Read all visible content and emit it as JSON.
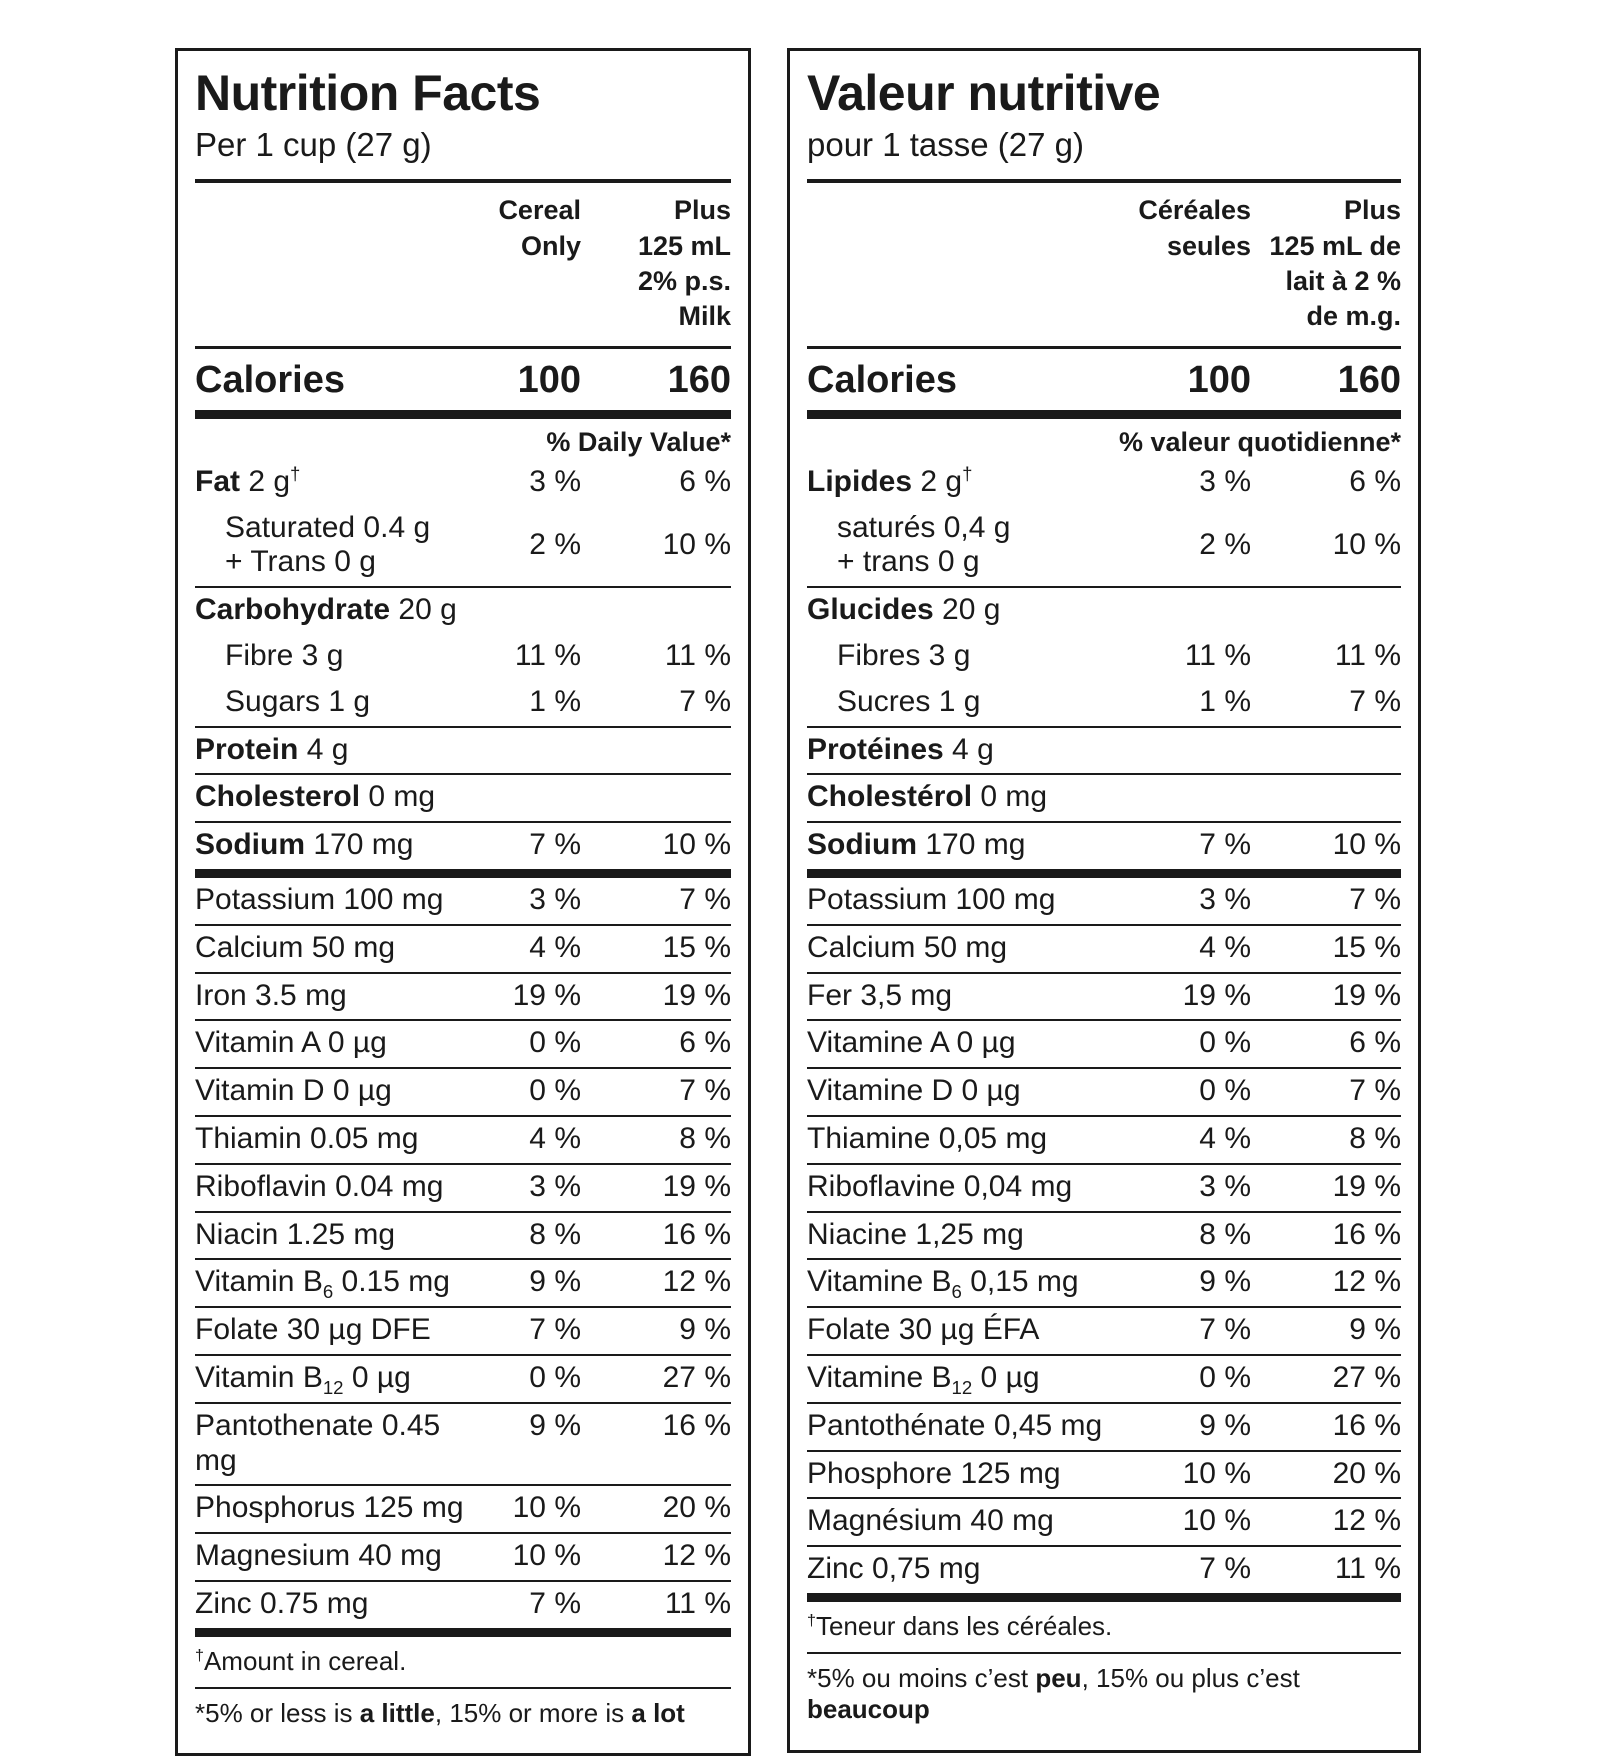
{
  "page_background": "#ffffff",
  "text_color": "#1a1a1a",
  "panels": {
    "en": {
      "title": "Nutrition Facts",
      "serving": "Per 1 cup (27 g)",
      "column_headers": {
        "col1_lines": [
          "Cereal",
          "Only"
        ],
        "col2_lines": [
          "Plus",
          "125 mL",
          "2% p.s.",
          "Milk"
        ]
      },
      "calories": {
        "label": "Calories",
        "cereal_only": "100",
        "with_milk": "160"
      },
      "daily_value_label": "% Daily Value*",
      "macro_blocks": [
        {
          "rows": [
            {
              "lines": [
                [
                  {
                    "t": "Fat",
                    "b": true
                  },
                  {
                    "t": " 2 g"
                  },
                  {
                    "t": "†",
                    "sup": true
                  }
                ]
              ],
              "indent": false,
              "v1": "3 %",
              "v2": "6 %"
            },
            {
              "lines": [
                [
                  {
                    "t": "Saturated 0.4 g"
                  }
                ],
                [
                  {
                    "t": "+ Trans 0 g"
                  }
                ]
              ],
              "indent": true,
              "v1": "2 %",
              "v2": "10 %"
            }
          ]
        },
        {
          "rows": [
            {
              "lines": [
                [
                  {
                    "t": "Carbohydrate",
                    "b": true
                  },
                  {
                    "t": " 20 g"
                  }
                ]
              ],
              "indent": false,
              "v1": "",
              "v2": ""
            },
            {
              "lines": [
                [
                  {
                    "t": "Fibre 3 g"
                  }
                ]
              ],
              "indent": true,
              "v1": "11 %",
              "v2": "11 %"
            },
            {
              "lines": [
                [
                  {
                    "t": "Sugars 1 g"
                  }
                ]
              ],
              "indent": true,
              "v1": "1 %",
              "v2": "7 %"
            }
          ]
        },
        {
          "rows": [
            {
              "lines": [
                [
                  {
                    "t": "Protein",
                    "b": true
                  },
                  {
                    "t": " 4 g"
                  }
                ]
              ],
              "indent": false,
              "v1": "",
              "v2": ""
            }
          ]
        },
        {
          "rows": [
            {
              "lines": [
                [
                  {
                    "t": "Cholesterol",
                    "b": true
                  },
                  {
                    "t": " 0 mg"
                  }
                ]
              ],
              "indent": false,
              "v1": "",
              "v2": ""
            }
          ]
        },
        {
          "rows": [
            {
              "lines": [
                [
                  {
                    "t": "Sodium",
                    "b": true
                  },
                  {
                    "t": " 170 mg"
                  }
                ]
              ],
              "indent": false,
              "v1": "7 %",
              "v2": "10 %"
            }
          ]
        }
      ],
      "micro_rows": [
        {
          "lines": [
            [
              {
                "t": "Potassium 100 mg"
              }
            ]
          ],
          "v1": "3 %",
          "v2": "7 %"
        },
        {
          "lines": [
            [
              {
                "t": "Calcium 50 mg"
              }
            ]
          ],
          "v1": "4 %",
          "v2": "15 %"
        },
        {
          "lines": [
            [
              {
                "t": "Iron 3.5 mg"
              }
            ]
          ],
          "v1": "19 %",
          "v2": "19 %"
        },
        {
          "lines": [
            [
              {
                "t": "Vitamin A 0 µg"
              }
            ]
          ],
          "v1": "0 %",
          "v2": "6 %"
        },
        {
          "lines": [
            [
              {
                "t": "Vitamin D 0 µg"
              }
            ]
          ],
          "v1": "0 %",
          "v2": "7 %"
        },
        {
          "lines": [
            [
              {
                "t": "Thiamin 0.05 mg"
              }
            ]
          ],
          "v1": "4 %",
          "v2": "8 %"
        },
        {
          "lines": [
            [
              {
                "t": "Riboflavin 0.04 mg"
              }
            ]
          ],
          "v1": "3 %",
          "v2": "19 %"
        },
        {
          "lines": [
            [
              {
                "t": "Niacin 1.25 mg"
              }
            ]
          ],
          "v1": "8 %",
          "v2": "16 %"
        },
        {
          "lines": [
            [
              {
                "t": "Vitamin B"
              },
              {
                "t": "6",
                "sub": true
              },
              {
                "t": " 0.15 mg"
              }
            ]
          ],
          "v1": "9 %",
          "v2": "12 %"
        },
        {
          "lines": [
            [
              {
                "t": "Folate 30 µg DFE"
              }
            ]
          ],
          "v1": "7 %",
          "v2": "9 %"
        },
        {
          "lines": [
            [
              {
                "t": "Vitamin B"
              },
              {
                "t": "12",
                "sub": true
              },
              {
                "t": " 0 µg"
              }
            ]
          ],
          "v1": "0 %",
          "v2": "27 %"
        },
        {
          "lines": [
            [
              {
                "t": "Pantothenate 0.45 mg"
              }
            ]
          ],
          "v1": "9 %",
          "v2": "16 %"
        },
        {
          "lines": [
            [
              {
                "t": "Phosphorus 125 mg"
              }
            ]
          ],
          "v1": "10 %",
          "v2": "20 %"
        },
        {
          "lines": [
            [
              {
                "t": "Magnesium 40 mg"
              }
            ]
          ],
          "v1": "10 %",
          "v2": "12 %"
        },
        {
          "lines": [
            [
              {
                "t": "Zinc 0.75 mg"
              }
            ]
          ],
          "v1": "7 %",
          "v2": "11 %"
        }
      ],
      "footnote_dagger": [
        {
          "t": "†",
          "sup": true
        },
        {
          "t": "Amount in cereal."
        }
      ],
      "footnote_star": [
        {
          "t": "*"
        },
        {
          "t": "5% or less is "
        },
        {
          "t": "a little",
          "b": true
        },
        {
          "t": ", 15% or more is "
        },
        {
          "t": "a lot",
          "b": true
        }
      ]
    },
    "fr": {
      "title": "Valeur nutritive",
      "serving": "pour 1 tasse (27 g)",
      "column_headers": {
        "col1_lines": [
          "Céréales",
          "seules"
        ],
        "col2_lines": [
          "Plus",
          "125 mL de",
          "lait à 2 %",
          "de m.g."
        ]
      },
      "calories": {
        "label": "Calories",
        "cereal_only": "100",
        "with_milk": "160"
      },
      "daily_value_label": "% valeur quotidienne*",
      "macro_blocks": [
        {
          "rows": [
            {
              "lines": [
                [
                  {
                    "t": "Lipides",
                    "b": true
                  },
                  {
                    "t": " 2 g"
                  },
                  {
                    "t": "†",
                    "sup": true
                  }
                ]
              ],
              "indent": false,
              "v1": "3 %",
              "v2": "6 %"
            },
            {
              "lines": [
                [
                  {
                    "t": "saturés 0,4 g"
                  }
                ],
                [
                  {
                    "t": "+ trans 0 g"
                  }
                ]
              ],
              "indent": true,
              "v1": "2 %",
              "v2": "10 %"
            }
          ]
        },
        {
          "rows": [
            {
              "lines": [
                [
                  {
                    "t": "Glucides",
                    "b": true
                  },
                  {
                    "t": " 20 g"
                  }
                ]
              ],
              "indent": false,
              "v1": "",
              "v2": ""
            },
            {
              "lines": [
                [
                  {
                    "t": "Fibres 3 g"
                  }
                ]
              ],
              "indent": true,
              "v1": "11 %",
              "v2": "11 %"
            },
            {
              "lines": [
                [
                  {
                    "t": "Sucres 1 g"
                  }
                ]
              ],
              "indent": true,
              "v1": "1 %",
              "v2": "7 %"
            }
          ]
        },
        {
          "rows": [
            {
              "lines": [
                [
                  {
                    "t": "Protéines",
                    "b": true
                  },
                  {
                    "t": " 4 g"
                  }
                ]
              ],
              "indent": false,
              "v1": "",
              "v2": ""
            }
          ]
        },
        {
          "rows": [
            {
              "lines": [
                [
                  {
                    "t": "Cholestérol",
                    "b": true
                  },
                  {
                    "t": " 0 mg"
                  }
                ]
              ],
              "indent": false,
              "v1": "",
              "v2": ""
            }
          ]
        },
        {
          "rows": [
            {
              "lines": [
                [
                  {
                    "t": "Sodium",
                    "b": true
                  },
                  {
                    "t": " 170 mg"
                  }
                ]
              ],
              "indent": false,
              "v1": "7 %",
              "v2": "10 %"
            }
          ]
        }
      ],
      "micro_rows": [
        {
          "lines": [
            [
              {
                "t": "Potassium 100 mg"
              }
            ]
          ],
          "v1": "3 %",
          "v2": "7 %"
        },
        {
          "lines": [
            [
              {
                "t": "Calcium 50 mg"
              }
            ]
          ],
          "v1": "4 %",
          "v2": "15 %"
        },
        {
          "lines": [
            [
              {
                "t": "Fer 3,5 mg"
              }
            ]
          ],
          "v1": "19 %",
          "v2": "19 %"
        },
        {
          "lines": [
            [
              {
                "t": "Vitamine A 0 µg"
              }
            ]
          ],
          "v1": "0 %",
          "v2": "6 %"
        },
        {
          "lines": [
            [
              {
                "t": "Vitamine D 0 µg"
              }
            ]
          ],
          "v1": "0 %",
          "v2": "7 %"
        },
        {
          "lines": [
            [
              {
                "t": "Thiamine 0,05 mg"
              }
            ]
          ],
          "v1": "4 %",
          "v2": "8 %"
        },
        {
          "lines": [
            [
              {
                "t": "Riboflavine 0,04 mg"
              }
            ]
          ],
          "v1": "3 %",
          "v2": "19 %"
        },
        {
          "lines": [
            [
              {
                "t": "Niacine 1,25 mg"
              }
            ]
          ],
          "v1": "8 %",
          "v2": "16 %"
        },
        {
          "lines": [
            [
              {
                "t": "Vitamine B"
              },
              {
                "t": "6",
                "sub": true
              },
              {
                "t": " 0,15 mg"
              }
            ]
          ],
          "v1": "9 %",
          "v2": "12 %"
        },
        {
          "lines": [
            [
              {
                "t": "Folate 30 µg ÉFA"
              }
            ]
          ],
          "v1": "7 %",
          "v2": "9 %"
        },
        {
          "lines": [
            [
              {
                "t": "Vitamine B"
              },
              {
                "t": "12",
                "sub": true
              },
              {
                "t": " 0 µg"
              }
            ]
          ],
          "v1": "0 %",
          "v2": "27 %"
        },
        {
          "lines": [
            [
              {
                "t": "Pantothénate 0,45 mg"
              }
            ]
          ],
          "v1": "9 %",
          "v2": "16 %"
        },
        {
          "lines": [
            [
              {
                "t": "Phosphore 125 mg"
              }
            ]
          ],
          "v1": "10 %",
          "v2": "20 %"
        },
        {
          "lines": [
            [
              {
                "t": "Magnésium 40 mg"
              }
            ]
          ],
          "v1": "10 %",
          "v2": "12 %"
        },
        {
          "lines": [
            [
              {
                "t": "Zinc 0,75 mg"
              }
            ]
          ],
          "v1": "7 %",
          "v2": "11 %"
        }
      ],
      "footnote_dagger": [
        {
          "t": "†",
          "sup": true
        },
        {
          "t": "Teneur dans les céréales."
        }
      ],
      "footnote_star": [
        {
          "t": "*"
        },
        {
          "t": "5% ou moins c’est "
        },
        {
          "t": "peu",
          "b": true
        },
        {
          "t": ", 15% ou plus c’est "
        },
        {
          "t": "beaucoup",
          "b": true
        }
      ]
    }
  }
}
